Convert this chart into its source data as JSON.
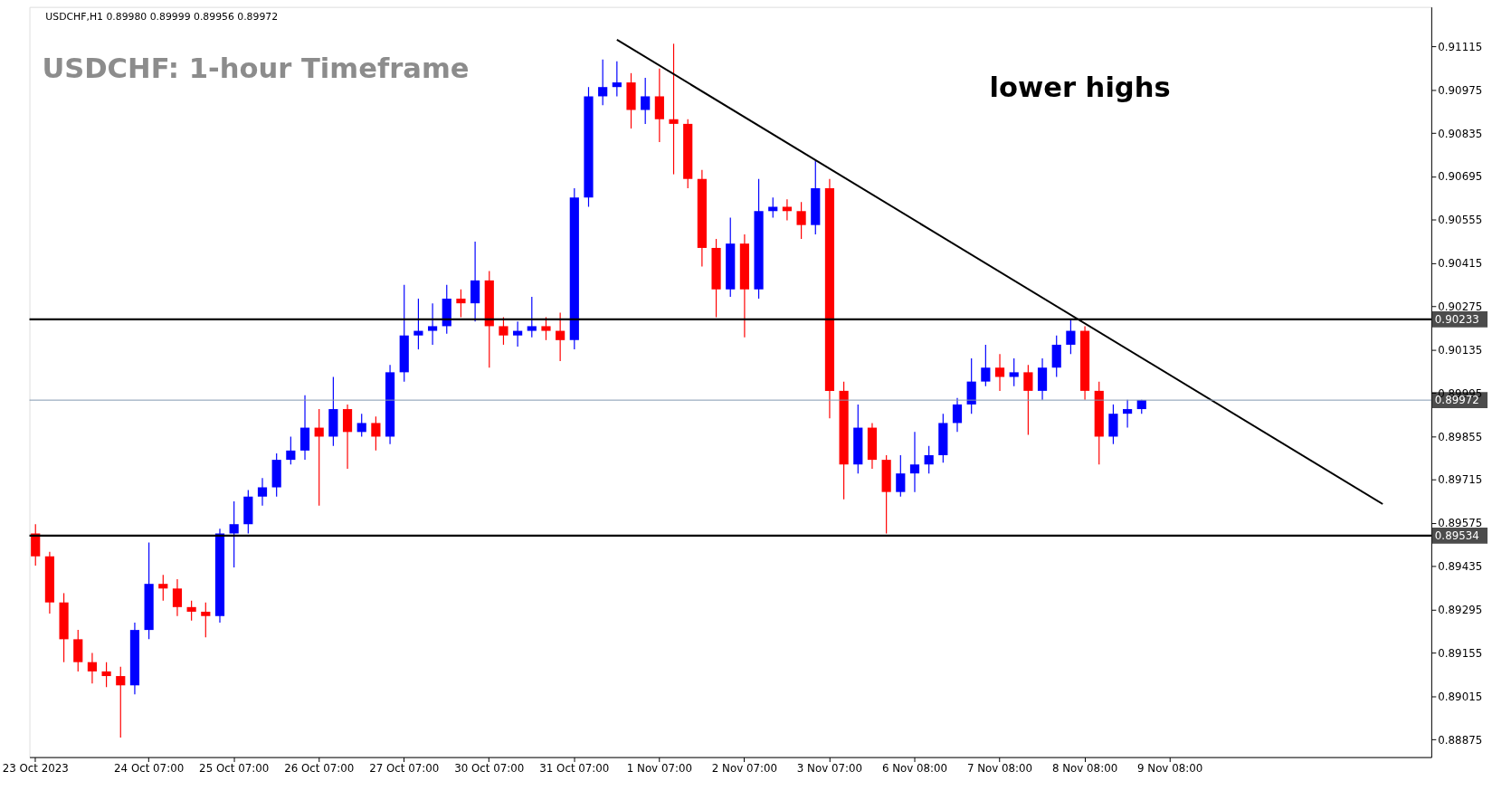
{
  "chart_data": {
    "type": "candlestick",
    "title": "USDCHF: 1-hour Timeframe",
    "annotations": [
      "USDCHF,H1  0.89980 0.89999 0.89956 0.89972",
      "lower highs"
    ],
    "categories": [
      "23 Oct 2023",
      null,
      null,
      null,
      null,
      null,
      null,
      null,
      "24 Oct 07:00",
      null,
      null,
      null,
      null,
      null,
      "25 Oct 07:00",
      null,
      null,
      null,
      null,
      null,
      "26 Oct 07:00",
      null,
      null,
      null,
      null,
      null,
      "27 Oct 07:00",
      null,
      null,
      null,
      null,
      null,
      "30 Oct 07:00",
      null,
      null,
      null,
      null,
      null,
      "31 Oct 07:00",
      null,
      null,
      null,
      null,
      null,
      "1 Nov 07:00",
      null,
      null,
      null,
      null,
      null,
      "2 Nov 07:00",
      null,
      null,
      null,
      null,
      null,
      "3 Nov 07:00",
      null,
      null,
      null,
      null,
      null,
      "6 Nov 08:00",
      null,
      null,
      null,
      null,
      null,
      "7 Nov 08:00",
      null,
      null,
      null,
      null,
      null,
      "8 Nov 08:00",
      null,
      null,
      null,
      null,
      null,
      "9 Nov 08:00",
      null,
      null,
      null,
      null,
      null,
      null,
      null,
      null,
      null,
      null,
      null,
      null,
      null,
      null,
      null,
      null,
      null,
      null
    ],
    "colors": [
      "#ff0000",
      "#ff0000",
      "#ff0000",
      "#ff0000",
      "#ff0000",
      "#ff0000",
      "#ff0000",
      "#0000ff",
      "#0000ff",
      "#ff0000",
      "#ff0000",
      "#ff0000",
      "#ff0000",
      "#0000ff",
      "#0000ff",
      "#0000ff",
      "#0000ff",
      "#0000ff",
      "#0000ff",
      "#0000ff",
      "#ff0000",
      "#0000ff",
      "#ff0000",
      "#0000ff",
      "#ff0000",
      "#0000ff",
      "#0000ff",
      "#0000ff",
      "#0000ff",
      "#0000ff",
      "#ff0000",
      "#0000ff",
      "#ff0000",
      "#ff0000",
      "#0000ff",
      "#0000ff",
      "#ff0000",
      "#ff0000",
      "#0000ff",
      "#0000ff",
      "#0000ff",
      "#0000ff",
      "#ff0000",
      "#0000ff",
      "#ff0000",
      "#ff0000",
      "#ff0000",
      "#ff0000",
      "#ff0000",
      "#0000ff",
      "#ff0000",
      "#0000ff",
      "#0000ff",
      "#ff0000",
      "#ff0000",
      "#0000ff",
      "#ff0000",
      "#ff0000",
      "#0000ff",
      "#ff0000",
      "#ff0000",
      "#0000ff",
      "#0000ff",
      "#0000ff",
      "#0000ff",
      "#0000ff",
      "#0000ff",
      "#0000ff",
      "#ff0000",
      "#0000ff",
      "#ff0000",
      "#0000ff",
      "#0000ff",
      "#0000ff",
      "#ff0000",
      "#ff0000",
      "#0000ff",
      "#0000ff",
      "#0000ff",
      null,
      null,
      null,
      null,
      null,
      null,
      null,
      null,
      null,
      null,
      null,
      null,
      null,
      null,
      null,
      null,
      null,
      null,
      null,
      null
    ],
    "ohlc": [
      [
        0.89541,
        0.89571,
        0.89437,
        0.89467
      ],
      [
        0.89467,
        0.89482,
        0.89282,
        0.89318
      ],
      [
        0.89318,
        0.89348,
        0.89125,
        0.89199
      ],
      [
        0.89199,
        0.89229,
        0.89095,
        0.89125
      ],
      [
        0.89125,
        0.89155,
        0.89056,
        0.89095
      ],
      [
        0.89095,
        0.89125,
        0.89044,
        0.8908
      ],
      [
        0.8908,
        0.8911,
        0.88881,
        0.8905
      ],
      [
        0.8905,
        0.89253,
        0.89021,
        0.89229
      ],
      [
        0.89229,
        0.89512,
        0.89199,
        0.89378
      ],
      [
        0.89378,
        0.89407,
        0.89324,
        0.89363
      ],
      [
        0.89363,
        0.89393,
        0.89274,
        0.89303
      ],
      [
        0.89303,
        0.89324,
        0.89259,
        0.89288
      ],
      [
        0.89288,
        0.89318,
        0.89205,
        0.89274
      ],
      [
        0.89274,
        0.89556,
        0.89253,
        0.89541
      ],
      [
        0.89541,
        0.89645,
        0.89431,
        0.89571
      ],
      [
        0.89571,
        0.89681,
        0.89541,
        0.8966
      ],
      [
        0.8966,
        0.8972,
        0.89631,
        0.8969
      ],
      [
        0.8969,
        0.898,
        0.8966,
        0.89779
      ],
      [
        0.89779,
        0.89854,
        0.89764,
        0.89809
      ],
      [
        0.89809,
        0.89988,
        0.89779,
        0.89883
      ],
      [
        0.89883,
        0.89943,
        0.89631,
        0.89854
      ],
      [
        0.89854,
        0.90047,
        0.89824,
        0.89943
      ],
      [
        0.89943,
        0.89958,
        0.8975,
        0.89869
      ],
      [
        0.89869,
        0.89928,
        0.89854,
        0.89898
      ],
      [
        0.89898,
        0.89919,
        0.89809,
        0.89854
      ],
      [
        0.89854,
        0.90086,
        0.8983,
        0.90062
      ],
      [
        0.90062,
        0.90345,
        0.90032,
        0.90181
      ],
      [
        0.90181,
        0.903,
        0.90136,
        0.90196
      ],
      [
        0.90196,
        0.90285,
        0.90151,
        0.90211
      ],
      [
        0.90211,
        0.90345,
        0.90187,
        0.903
      ],
      [
        0.903,
        0.9033,
        0.9024,
        0.90285
      ],
      [
        0.90285,
        0.90484,
        0.90226,
        0.90359
      ],
      [
        0.90359,
        0.90389,
        0.90077,
        0.90211
      ],
      [
        0.90211,
        0.9024,
        0.90151,
        0.90181
      ],
      [
        0.90181,
        0.90226,
        0.90145,
        0.90196
      ],
      [
        0.90196,
        0.90306,
        0.90175,
        0.90211
      ],
      [
        0.90211,
        0.9024,
        0.90166,
        0.90196
      ],
      [
        0.90196,
        0.90255,
        0.90098,
        0.90166
      ],
      [
        0.90166,
        0.90657,
        0.90136,
        0.90627
      ],
      [
        0.90627,
        0.90984,
        0.90597,
        0.90954
      ],
      [
        0.90954,
        0.91073,
        0.90925,
        0.90984
      ],
      [
        0.90984,
        0.91067,
        0.90954,
        0.90999
      ],
      [
        0.90999,
        0.91029,
        0.9085,
        0.9091
      ],
      [
        0.9091,
        0.91014,
        0.90865,
        0.90954
      ],
      [
        0.90954,
        0.91044,
        0.90806,
        0.9088
      ],
      [
        0.9088,
        0.91124,
        0.90702,
        0.90865
      ],
      [
        0.90865,
        0.9088,
        0.90657,
        0.90687
      ],
      [
        0.90687,
        0.90716,
        0.90404,
        0.90464
      ],
      [
        0.90464,
        0.90493,
        0.9024,
        0.9033
      ],
      [
        0.9033,
        0.90562,
        0.90306,
        0.90478
      ],
      [
        0.90478,
        0.90508,
        0.90175,
        0.9033
      ],
      [
        0.9033,
        0.90687,
        0.903,
        0.90583
      ],
      [
        0.90583,
        0.90627,
        0.90562,
        0.90597
      ],
      [
        0.90597,
        0.90621,
        0.90553,
        0.90583
      ],
      [
        0.90583,
        0.90612,
        0.90493,
        0.90538
      ],
      [
        0.90538,
        0.90746,
        0.90508,
        0.90657
      ],
      [
        0.90657,
        0.90687,
        0.89913,
        0.90002
      ],
      [
        0.90002,
        0.90032,
        0.89651,
        0.89764
      ],
      [
        0.89764,
        0.89958,
        0.89735,
        0.89883
      ],
      [
        0.89883,
        0.89898,
        0.8975,
        0.89779
      ],
      [
        0.89779,
        0.89794,
        0.89541,
        0.89675
      ],
      [
        0.89675,
        0.89794,
        0.8966,
        0.89735
      ],
      [
        0.89735,
        0.89869,
        0.89675,
        0.89764
      ],
      [
        0.89764,
        0.89824,
        0.89735,
        0.89794
      ],
      [
        0.89794,
        0.89928,
        0.8977,
        0.89898
      ],
      [
        0.89898,
        0.89979,
        0.89869,
        0.89958
      ],
      [
        0.89958,
        0.90107,
        0.89928,
        0.90032
      ],
      [
        0.90032,
        0.90151,
        0.90017,
        0.90077
      ],
      [
        0.90077,
        0.90121,
        0.90002,
        0.90047
      ],
      [
        0.90047,
        0.90107,
        0.90017,
        0.90062
      ],
      [
        0.90062,
        0.90086,
        0.8986,
        0.90002
      ],
      [
        0.90002,
        0.90107,
        0.89973,
        0.90077
      ],
      [
        0.90077,
        0.90181,
        0.90047,
        0.90151
      ],
      [
        0.90151,
        0.90234,
        0.90121,
        0.90196
      ],
      [
        0.90196,
        0.90211,
        0.89973,
        0.90002
      ],
      [
        0.90002,
        0.90032,
        0.89764,
        0.89854
      ],
      [
        0.89854,
        0.89958,
        0.8983,
        0.89928
      ],
      [
        0.89928,
        0.89973,
        0.89883,
        0.89943
      ],
      [
        0.89943,
        0.89973,
        0.89928,
        0.89972
      ],
      null,
      null,
      null,
      null,
      null,
      null,
      null,
      null,
      null,
      null,
      null,
      null,
      null,
      null,
      null,
      null,
      null,
      null,
      null,
      null
    ],
    "series": [
      {
        "type": "line",
        "color": "#000000",
        "values": [
          null,
          null,
          null,
          null,
          null,
          null,
          null,
          null,
          null,
          null,
          null,
          null,
          null,
          null,
          null,
          null,
          null,
          null,
          null,
          null,
          null,
          null,
          null,
          null,
          null,
          null,
          null,
          null,
          null,
          null,
          null,
          null,
          null,
          null,
          null,
          null,
          null,
          null,
          null,
          null,
          null,
          0.91137,
          null,
          null,
          null,
          null,
          null,
          null,
          null,
          null,
          null,
          null,
          null,
          null,
          null,
          null,
          null,
          null,
          null,
          null,
          null,
          null,
          null,
          null,
          null,
          null,
          null,
          null,
          null,
          null,
          null,
          null,
          null,
          null,
          null,
          null,
          null,
          null,
          null,
          null,
          null,
          null,
          null,
          null,
          null,
          null,
          null,
          null,
          null,
          null,
          null,
          null,
          null,
          null,
          null,
          0.89636,
          null,
          null,
          null
        ]
      }
    ],
    "ref_lines": [
      {
        "axis": "y",
        "value": 0.90233,
        "label": "0.90233",
        "color": "#000000"
      },
      {
        "axis": "y",
        "value": 0.89534,
        "label": "0.89534",
        "color": "#000000"
      },
      {
        "axis": "y",
        "value": 0.89972,
        "label": "0.89972",
        "color": "#8096b0"
      }
    ],
    "ylim": [
      0.88818,
      0.91243
    ],
    "yticks": [
      0.88875,
      0.89015,
      0.89155,
      0.89295,
      0.89435,
      0.89575,
      0.89715,
      0.89855,
      0.89995,
      0.90135,
      0.90275,
      0.90415,
      0.90555,
      0.90695,
      0.90835,
      0.90975,
      0.91115
    ],
    "grid": false
  }
}
